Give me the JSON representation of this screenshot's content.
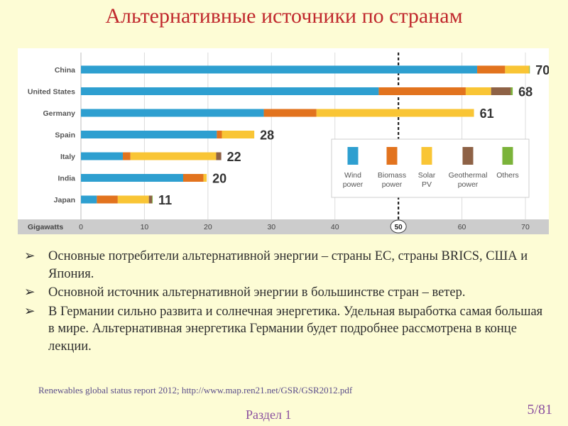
{
  "slide": {
    "title": "Альтернативные источники по странам",
    "bullet_symbol": "➢",
    "bullets": [
      "Основные потребители альтернативной энергии – страны ЕС, страны BRICS, США и Япония.",
      "Основной источник альтернативной энергии в большинстве стран – ветер.",
      "В Германии сильно развита и солнечная энергетика. Удельная выработка самая большая в мире. Альтернативная энергетика Германии будет подробнее рассмотрена в конце лекции."
    ],
    "source": "Renewables global status report 2012; http://www.map.ren21.net/GSR/GSR2012.pdf",
    "footer": "Раздел 1",
    "page": "5/81"
  },
  "chart_data": {
    "type": "bar",
    "orientation": "horizontal",
    "stacked": true,
    "xlabel": "Gigawatts",
    "xlim": [
      0,
      70
    ],
    "xticks": [
      0,
      10,
      20,
      30,
      40,
      50,
      60,
      70
    ],
    "reference_line": 50,
    "categories": [
      "China",
      "United States",
      "Germany",
      "Spain",
      "Italy",
      "India",
      "Japan"
    ],
    "totals": [
      70,
      68,
      61,
      28,
      22,
      20,
      11
    ],
    "series": [
      {
        "name": "Wind power",
        "color": "#2e9fd0",
        "values": [
          62.4,
          46.9,
          28.8,
          21.4,
          6.6,
          16.1,
          2.5
        ]
      },
      {
        "name": "Biomass power",
        "color": "#e2731e",
        "values": [
          4.4,
          13.7,
          8.3,
          0.8,
          1.2,
          3.2,
          3.3
        ]
      },
      {
        "name": "Solar PV",
        "color": "#f9c535",
        "values": [
          3.8,
          4.0,
          24.8,
          5.1,
          13.5,
          0.5,
          4.9
        ]
      },
      {
        "name": "Geothermal power",
        "color": "#8e6246",
        "values": [
          0,
          3.1,
          0,
          0,
          0.8,
          0,
          0.5
        ]
      },
      {
        "name": "Others",
        "color": "#7bb33a",
        "values": [
          0.1,
          0.3,
          0,
          0,
          0,
          0,
          0.1
        ]
      }
    ],
    "legend": [
      {
        "line1": "Wind",
        "line2": "power"
      },
      {
        "line1": "Biomass",
        "line2": "power"
      },
      {
        "line1": "Solar",
        "line2": "PV"
      },
      {
        "line1": "Geothermal",
        "line2": "power"
      },
      {
        "line1": "Others",
        "line2": ""
      }
    ]
  }
}
